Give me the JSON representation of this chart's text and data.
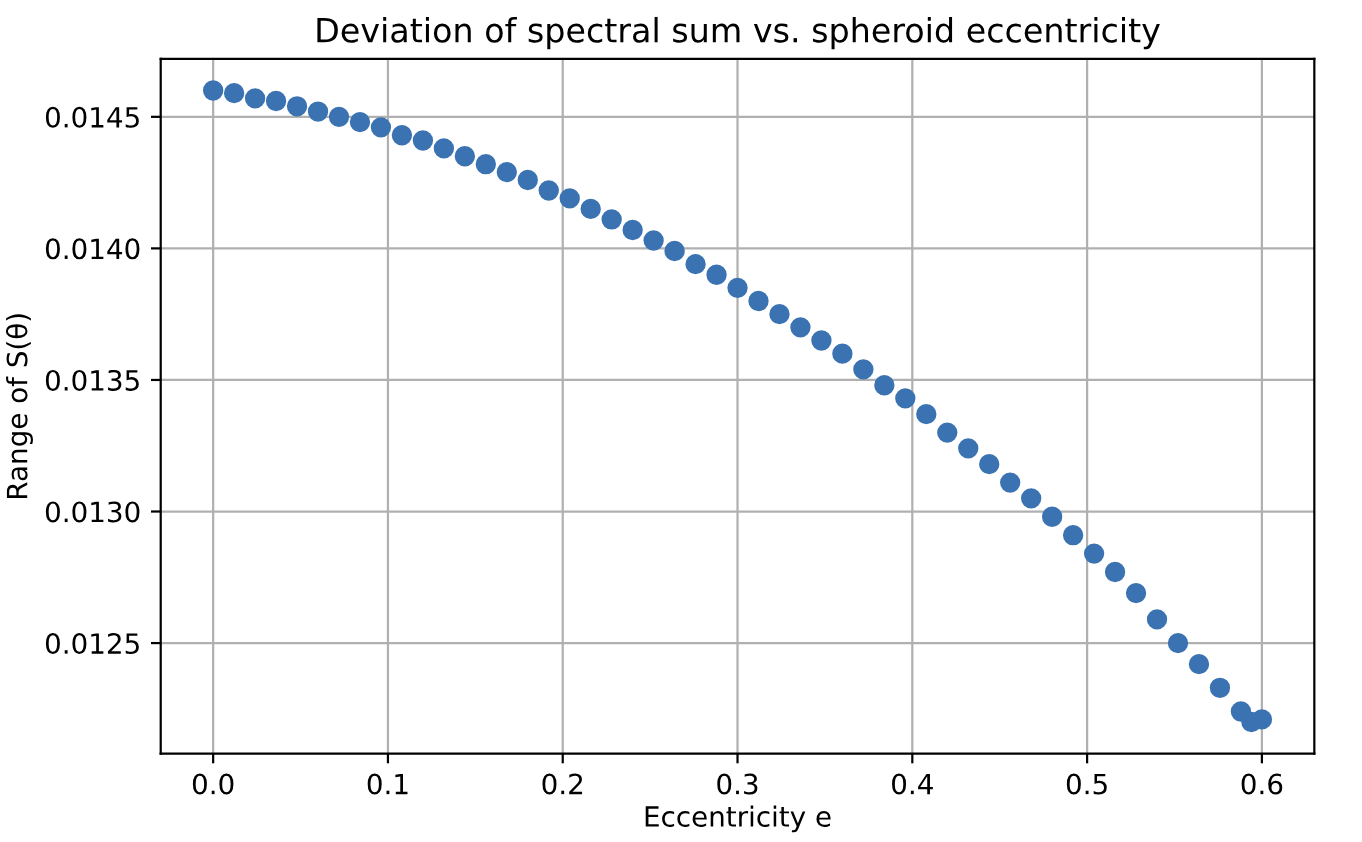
{
  "chart_data": {
    "type": "scatter",
    "title": "Deviation of spectral sum vs. spheroid eccentricity",
    "xlabel": "Eccentricity e",
    "ylabel": "Range of S(θ)",
    "x": [
      0,
      0.012,
      0.024,
      0.036,
      0.048,
      0.06,
      0.072,
      0.084,
      0.096,
      0.108,
      0.12,
      0.132,
      0.144,
      0.156,
      0.168,
      0.18,
      0.192,
      0.204,
      0.216,
      0.228,
      0.24,
      0.252,
      0.264,
      0.276,
      0.288,
      0.3,
      0.312,
      0.324,
      0.336,
      0.348,
      0.36,
      0.372,
      0.384,
      0.396,
      0.408,
      0.42,
      0.432,
      0.444,
      0.456,
      0.468,
      0.48,
      0.492,
      0.504,
      0.516,
      0.528,
      0.54,
      0.552,
      0.564,
      0.576,
      0.588,
      0.594,
      0.6
    ],
    "series": [
      {
        "color": "#3b73b2",
        "values": [
          0.0146,
          0.01459,
          0.01457,
          0.01456,
          0.01454,
          0.01452,
          0.0145,
          0.01448,
          0.01446,
          0.01443,
          0.01441,
          0.01438,
          0.01435,
          0.01432,
          0.01429,
          0.01426,
          0.01422,
          0.01419,
          0.01415,
          0.01411,
          0.01407,
          0.01403,
          0.01399,
          0.01394,
          0.0139,
          0.01385,
          0.0138,
          0.01375,
          0.0137,
          0.01365,
          0.0136,
          0.01354,
          0.01348,
          0.01343,
          0.01337,
          0.0133,
          0.01324,
          0.01318,
          0.01311,
          0.01305,
          0.01298,
          0.01291,
          0.01284,
          0.01277,
          0.01269,
          0.01259,
          0.0125,
          0.01242,
          0.01233,
          0.01224,
          0.0122,
          0.01221
        ]
      }
    ],
    "xlim": [
      -0.03,
      0.63
    ],
    "ylim": [
      0.01208,
      0.01472
    ],
    "xticks": [
      {
        "value": 0,
        "label": "0.0"
      },
      0.1,
      0.2,
      0.3,
      0.4,
      0.5,
      0.6
    ],
    "yticks": [
      0.0125,
      {
        "value": 0.013,
        "label": "0.0130"
      },
      0.0135,
      {
        "value": 0.014,
        "label": "0.0140"
      },
      0.0145
    ],
    "grid": true,
    "marker": "circle"
  }
}
